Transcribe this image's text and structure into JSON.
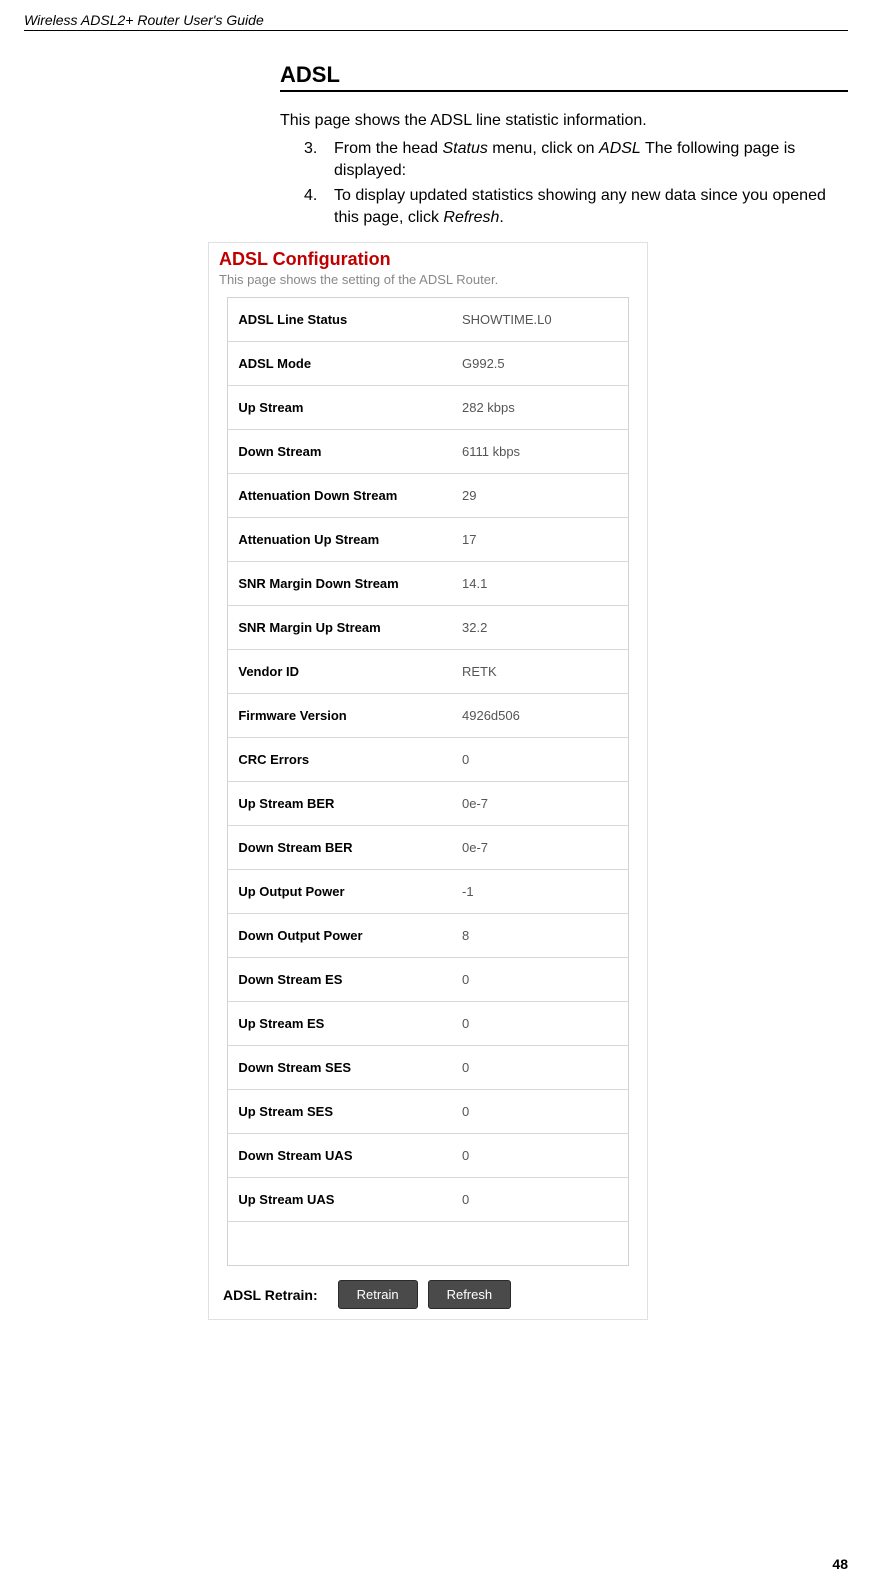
{
  "doc_header": "Wireless ADSL2+ Router User's Guide",
  "section_title": "ADSL",
  "intro": "This page shows the ADSL line statistic information.",
  "step3_num": "3.",
  "step3_pre": "From the head ",
  "step3_ital1": "Status",
  "step3_mid": " menu, click on ",
  "step3_ital2": "ADSL",
  "step3_post": " The following page is displayed:",
  "step4_num": "4.",
  "step4_pre": "To display updated statistics showing any new data since you opened this page, click ",
  "step4_ital": "Refresh",
  "step4_post": ".",
  "panel": {
    "title": "ADSL Configuration",
    "subtitle": "This page shows the setting of the ADSL Router."
  },
  "rows": [
    {
      "label": "ADSL Line Status",
      "value": "SHOWTIME.L0"
    },
    {
      "label": "ADSL Mode",
      "value": "G992.5"
    },
    {
      "label": "Up Stream",
      "value": "282 kbps"
    },
    {
      "label": "Down Stream",
      "value": "6111 kbps"
    },
    {
      "label": "Attenuation Down Stream",
      "value": "29"
    },
    {
      "label": "Attenuation Up Stream",
      "value": "17"
    },
    {
      "label": "SNR Margin Down Stream",
      "value": "14.1"
    },
    {
      "label": "SNR Margin Up Stream",
      "value": "32.2"
    },
    {
      "label": "Vendor ID",
      "value": "RETK"
    },
    {
      "label": "Firmware Version",
      "value": "4926d506"
    },
    {
      "label": "CRC Errors",
      "value": "0"
    },
    {
      "label": "Up Stream BER",
      "value": "0e-7"
    },
    {
      "label": "Down Stream BER",
      "value": "0e-7"
    },
    {
      "label": "Up Output Power",
      "value": "-1"
    },
    {
      "label": "Down Output Power",
      "value": "8"
    },
    {
      "label": "Down Stream ES",
      "value": "0"
    },
    {
      "label": "Up Stream ES",
      "value": "0"
    },
    {
      "label": "Down Stream SES",
      "value": "0"
    },
    {
      "label": "Up Stream SES",
      "value": "0"
    },
    {
      "label": "Down Stream UAS",
      "value": "0"
    },
    {
      "label": "Up Stream UAS",
      "value": "0"
    }
  ],
  "retrain_label": "ADSL Retrain:",
  "btn_retrain": "Retrain",
  "btn_refresh": "Refresh",
  "page_number": "48"
}
